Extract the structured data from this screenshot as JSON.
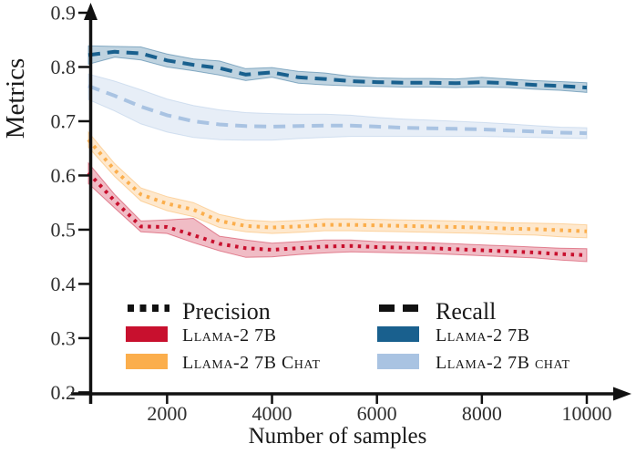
{
  "figure": {
    "ylabel": "Metrics",
    "xlabel": "Number of samples"
  },
  "legend": {
    "precision_header": "Precision",
    "recall_header": "Recall",
    "precision_items": [
      {
        "label": "Llama-2 7B",
        "color": "#C8102E"
      },
      {
        "label": "Llama-2 7B Chat",
        "color": "#FBAE4C"
      }
    ],
    "recall_items": [
      {
        "label": "Llama-2 7B",
        "color": "#19608E"
      },
      {
        "label": "Llama-2 7B chat",
        "color": "#A9C3E2"
      }
    ]
  },
  "chart_data": {
    "type": "line",
    "title": "",
    "xlabel": "Number of samples",
    "ylabel": "Metrics",
    "xlim": [
      500,
      10000
    ],
    "ylim": [
      0.2,
      0.9
    ],
    "xticks": [
      2000,
      4000,
      6000,
      8000,
      10000
    ],
    "yticks": [
      0.2,
      0.3,
      0.4,
      0.5,
      0.6,
      0.7,
      0.8,
      0.9
    ],
    "grid": false,
    "legend_position": "lower center, two columns",
    "axis_arrows": true,
    "x": [
      500,
      1000,
      1500,
      2000,
      2500,
      3000,
      3500,
      4000,
      4500,
      5000,
      5500,
      6000,
      6500,
      7000,
      7500,
      8000,
      8500,
      9000,
      9500,
      10000
    ],
    "series": [
      {
        "name": "Recall Llama-2 7B",
        "metric": "Recall",
        "model": "Llama-2 7B",
        "style": "dashed",
        "color": "#19608E",
        "values": [
          0.822,
          0.828,
          0.825,
          0.812,
          0.804,
          0.798,
          0.786,
          0.79,
          0.781,
          0.778,
          0.774,
          0.772,
          0.771,
          0.771,
          0.77,
          0.772,
          0.77,
          0.767,
          0.765,
          0.762
        ],
        "band_hi": [
          0.017,
          0.01,
          0.012,
          0.012,
          0.011,
          0.013,
          0.011,
          0.009,
          0.011,
          0.011,
          0.009,
          0.008,
          0.008,
          0.008,
          0.008,
          0.009,
          0.008,
          0.008,
          0.008,
          0.009
        ],
        "band_lo": [
          0.017,
          0.01,
          0.012,
          0.012,
          0.011,
          0.013,
          0.011,
          0.009,
          0.011,
          0.011,
          0.009,
          0.008,
          0.008,
          0.008,
          0.008,
          0.009,
          0.008,
          0.008,
          0.008,
          0.009
        ]
      },
      {
        "name": "Recall Llama-2 7B chat",
        "metric": "Recall",
        "model": "Llama-2 7B chat",
        "style": "dashed",
        "color": "#A9C3E2",
        "values": [
          0.765,
          0.747,
          0.727,
          0.711,
          0.7,
          0.694,
          0.691,
          0.69,
          0.691,
          0.692,
          0.692,
          0.69,
          0.688,
          0.687,
          0.686,
          0.685,
          0.683,
          0.681,
          0.679,
          0.678
        ],
        "band_hi": [
          0.022,
          0.027,
          0.031,
          0.03,
          0.029,
          0.027,
          0.025,
          0.024,
          0.022,
          0.021,
          0.019,
          0.017,
          0.016,
          0.015,
          0.014,
          0.013,
          0.012,
          0.011,
          0.01,
          0.01
        ],
        "band_lo": [
          0.025,
          0.028,
          0.032,
          0.031,
          0.03,
          0.028,
          0.026,
          0.025,
          0.023,
          0.022,
          0.02,
          0.018,
          0.016,
          0.015,
          0.014,
          0.013,
          0.012,
          0.011,
          0.01,
          0.01
        ]
      },
      {
        "name": "Precision Llama-2 7B",
        "metric": "Precision",
        "model": "Llama-2 7B",
        "style": "dotted",
        "color": "#C8102E",
        "values": [
          0.605,
          0.553,
          0.506,
          0.505,
          0.49,
          0.474,
          0.466,
          0.463,
          0.466,
          0.469,
          0.47,
          0.468,
          0.467,
          0.466,
          0.464,
          0.462,
          0.46,
          0.458,
          0.455,
          0.453
        ],
        "band_hi": [
          0.018,
          0.012,
          0.01,
          0.013,
          0.031,
          0.014,
          0.015,
          0.012,
          0.012,
          0.012,
          0.011,
          0.01,
          0.01,
          0.01,
          0.01,
          0.01,
          0.01,
          0.01,
          0.011,
          0.012
        ],
        "band_lo": [
          0.02,
          0.013,
          0.01,
          0.012,
          0.014,
          0.013,
          0.017,
          0.013,
          0.012,
          0.012,
          0.011,
          0.01,
          0.01,
          0.01,
          0.01,
          0.01,
          0.01,
          0.01,
          0.011,
          0.012
        ]
      },
      {
        "name": "Precision Llama-2 7B Chat",
        "metric": "Precision",
        "model": "Llama-2 7B Chat",
        "style": "dotted",
        "color": "#FBAE4C",
        "values": [
          0.666,
          0.61,
          0.565,
          0.548,
          0.537,
          0.516,
          0.507,
          0.504,
          0.506,
          0.509,
          0.509,
          0.508,
          0.507,
          0.506,
          0.505,
          0.504,
          0.502,
          0.501,
          0.499,
          0.497
        ],
        "band_hi": [
          0.014,
          0.012,
          0.012,
          0.013,
          0.013,
          0.012,
          0.011,
          0.011,
          0.011,
          0.011,
          0.011,
          0.011,
          0.011,
          0.011,
          0.011,
          0.011,
          0.011,
          0.011,
          0.012,
          0.012
        ],
        "band_lo": [
          0.014,
          0.012,
          0.012,
          0.013,
          0.013,
          0.012,
          0.011,
          0.011,
          0.011,
          0.011,
          0.011,
          0.011,
          0.011,
          0.011,
          0.011,
          0.011,
          0.011,
          0.011,
          0.012,
          0.012
        ]
      }
    ]
  }
}
